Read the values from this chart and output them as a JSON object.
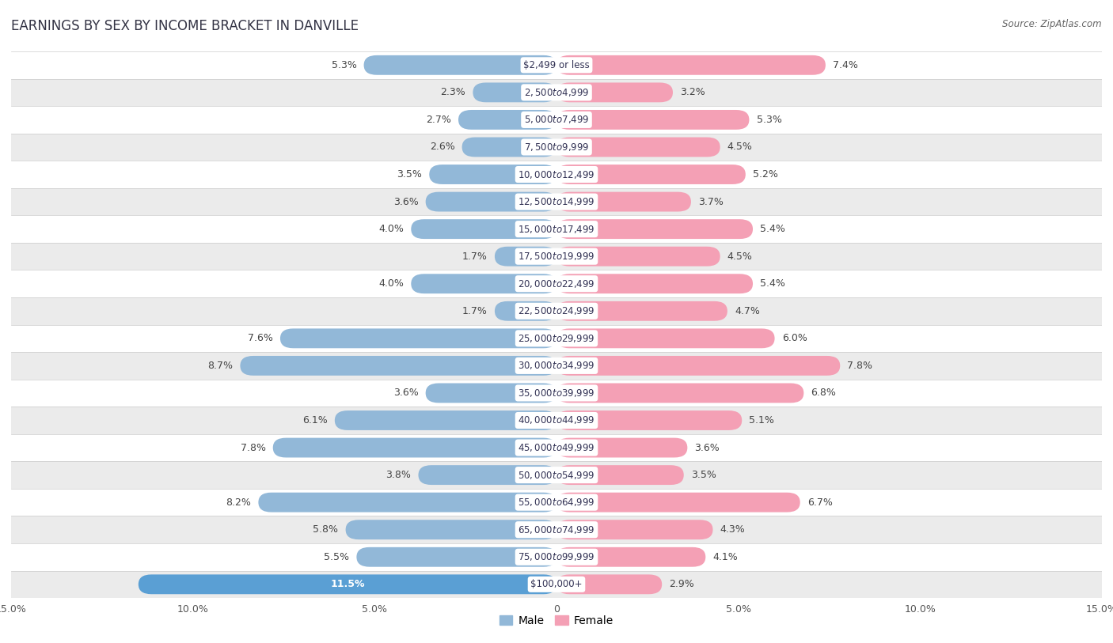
{
  "title": "EARNINGS BY SEX BY INCOME BRACKET IN DANVILLE",
  "source": "Source: ZipAtlas.com",
  "categories": [
    "$2,499 or less",
    "$2,500 to $4,999",
    "$5,000 to $7,499",
    "$7,500 to $9,999",
    "$10,000 to $12,499",
    "$12,500 to $14,999",
    "$15,000 to $17,499",
    "$17,500 to $19,999",
    "$20,000 to $22,499",
    "$22,500 to $24,999",
    "$25,000 to $29,999",
    "$30,000 to $34,999",
    "$35,000 to $39,999",
    "$40,000 to $44,999",
    "$45,000 to $49,999",
    "$50,000 to $54,999",
    "$55,000 to $64,999",
    "$65,000 to $74,999",
    "$75,000 to $99,999",
    "$100,000+"
  ],
  "male_values": [
    5.3,
    2.3,
    2.7,
    2.6,
    3.5,
    3.6,
    4.0,
    1.7,
    4.0,
    1.7,
    7.6,
    8.7,
    3.6,
    6.1,
    7.8,
    3.8,
    8.2,
    5.8,
    5.5,
    11.5
  ],
  "female_values": [
    7.4,
    3.2,
    5.3,
    4.5,
    5.2,
    3.7,
    5.4,
    4.5,
    5.4,
    4.7,
    6.0,
    7.8,
    6.8,
    5.1,
    3.6,
    3.5,
    6.7,
    4.3,
    4.1,
    2.9
  ],
  "male_color": "#92b8d8",
  "female_color": "#f4a0b5",
  "male_last_color": "#5a9fd4",
  "xlim": 15.0,
  "legend_male": "Male",
  "legend_female": "Female",
  "bg_color": "#ffffff",
  "row_color_even": "#ffffff",
  "row_color_odd": "#ebebeb",
  "title_fontsize": 12,
  "label_fontsize": 9,
  "cat_fontsize": 8.5,
  "axis_label_fontsize": 9,
  "bar_height": 0.72
}
